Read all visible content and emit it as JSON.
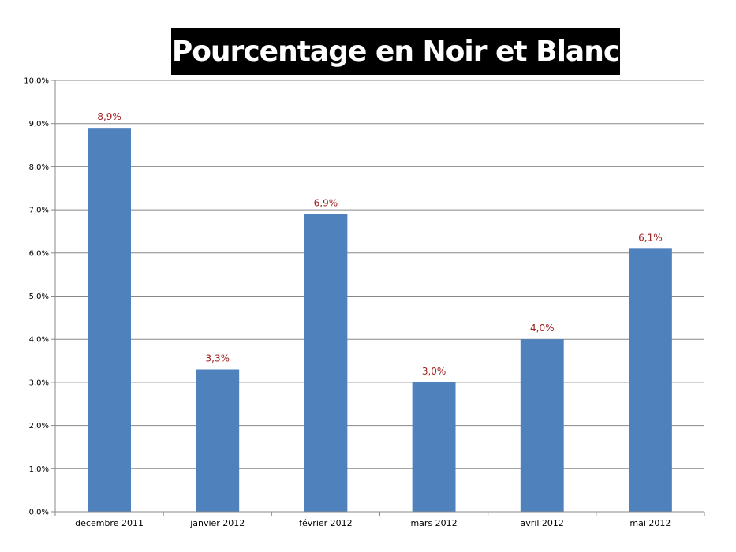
{
  "chart_data": {
    "type": "bar",
    "title": "Pourcentage en Noir et Blanc",
    "categories": [
      "decembre 2011",
      "janvier 2012",
      "février 2012",
      "mars 2012",
      "avril 2012",
      "mai 2012"
    ],
    "values": [
      8.9,
      3.3,
      6.9,
      3.0,
      4.0,
      6.1
    ],
    "value_labels": [
      "8,9%",
      "3,3%",
      "6,9%",
      "3,0%",
      "4,0%",
      "6,1%"
    ],
    "ylim": [
      0,
      10
    ],
    "yticks": [
      0,
      1,
      2,
      3,
      4,
      5,
      6,
      7,
      8,
      9,
      10
    ],
    "ytick_labels": [
      "0,0%",
      "1,0%",
      "2,0%",
      "3,0%",
      "4,0%",
      "5,0%",
      "6,0%",
      "7,0%",
      "8,0%",
      "9,0%",
      "10,0%"
    ],
    "xlabel": "",
    "ylabel": "",
    "grid": true,
    "legend": "none",
    "colors": {
      "bar": "#4f81bd",
      "data_label": "#a0201f",
      "grid": "#888888",
      "title_bg": "#000000",
      "title_text": "#ffffff"
    }
  }
}
